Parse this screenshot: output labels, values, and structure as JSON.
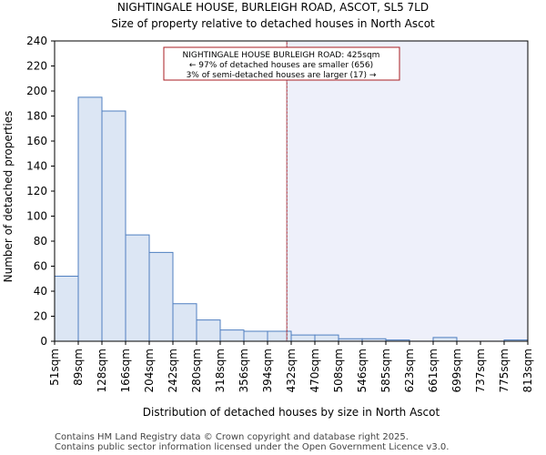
{
  "chart_data": {
    "type": "bar",
    "title_line1": "NIGHTINGALE HOUSE, BURLEIGH ROAD, ASCOT, SL5 7LD",
    "title_line2": "Size of property relative to detached houses in North Ascot",
    "xlabel": "Distribution of detached houses by size in North Ascot",
    "ylabel": "Number of detached properties",
    "ylim": [
      0,
      240
    ],
    "yticks": [
      0,
      20,
      40,
      60,
      80,
      100,
      120,
      140,
      160,
      180,
      200,
      220,
      240
    ],
    "bin_edges": [
      51,
      89,
      128,
      166,
      204,
      242,
      280,
      318,
      356,
      394,
      432,
      470,
      508,
      546,
      585,
      623,
      661,
      699,
      737,
      775,
      813
    ],
    "tick_labels": [
      "51sqm",
      "89sqm",
      "128sqm",
      "166sqm",
      "204sqm",
      "242sqm",
      "280sqm",
      "318sqm",
      "356sqm",
      "394sqm",
      "432sqm",
      "470sqm",
      "508sqm",
      "546sqm",
      "585sqm",
      "623sqm",
      "661sqm",
      "699sqm",
      "737sqm",
      "775sqm",
      "813sqm"
    ],
    "values": [
      52,
      195,
      184,
      85,
      71,
      30,
      17,
      9,
      8,
      8,
      5,
      5,
      2,
      2,
      1,
      0,
      3,
      0,
      0,
      1
    ],
    "property_size": 425,
    "annotation": {
      "line1": "NIGHTINGALE HOUSE BURLEIGH ROAD: 425sqm",
      "line2": "← 97% of detached houses are smaller (656)",
      "line3": "3% of semi-detached houses are larger (17) →"
    },
    "colors": {
      "bar_fill": "#dce6f4",
      "bar_stroke": "#4f7fc0",
      "marker_line": "#aa1e23",
      "highlight_fill": "#eef0fa",
      "annotation_border": "#aa1e23",
      "axis": "#000000"
    }
  },
  "footer": {
    "line1": "Contains HM Land Registry data © Crown copyright and database right 2025.",
    "line2": "Contains public sector information licensed under the Open Government Licence v3.0."
  }
}
